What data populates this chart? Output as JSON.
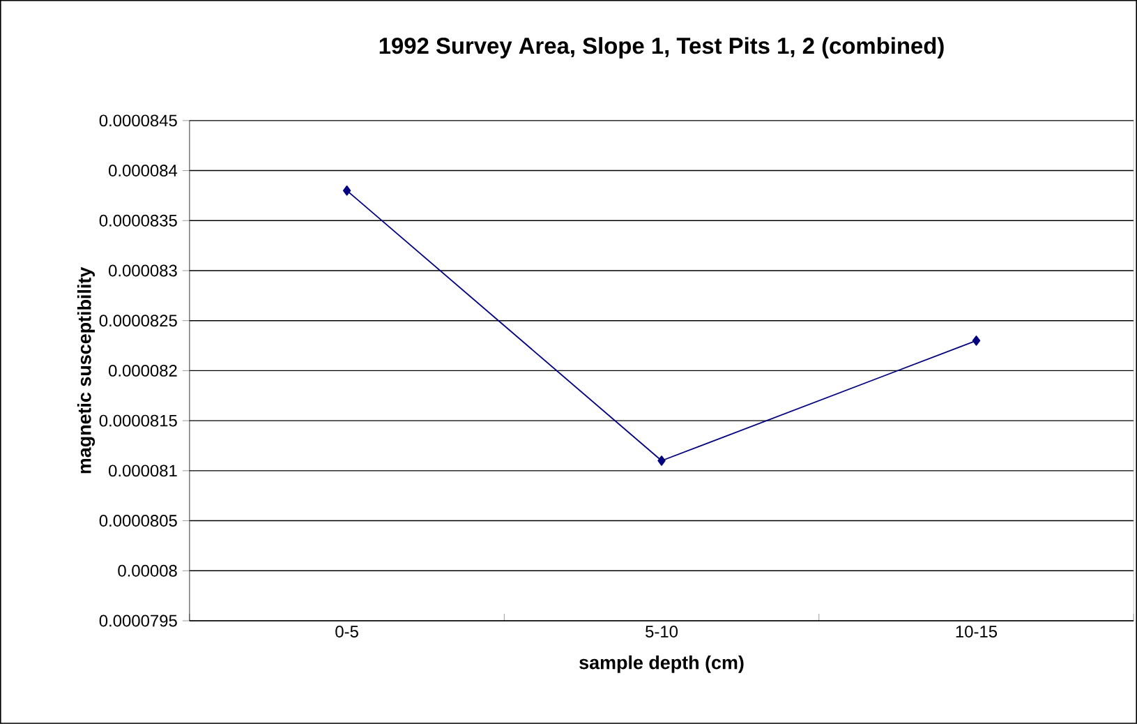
{
  "chart_data": {
    "type": "line",
    "title": "1992 Survey Area, Slope 1, Test Pits 1, 2 (combined)",
    "xlabel": "sample depth (cm)",
    "ylabel": "magnetic susceptibility",
    "categories": [
      "0-5",
      "5-10",
      "10-15"
    ],
    "series": [
      {
        "color": "#000080",
        "values": [
          8.38e-05,
          8.11e-05,
          8.23e-05
        ]
      }
    ],
    "ylim": [
      7.95e-05,
      8.45e-05
    ],
    "yticks": [
      {
        "value": 7.95e-05,
        "label": "0.0000795"
      },
      {
        "value": 8e-05,
        "label": "0.00008"
      },
      {
        "value": 8.05e-05,
        "label": "0.0000805"
      },
      {
        "value": 8.1e-05,
        "label": "0.000081"
      },
      {
        "value": 8.15e-05,
        "label": "0.0000815"
      },
      {
        "value": 8.2e-05,
        "label": "0.000082"
      },
      {
        "value": 8.25e-05,
        "label": "0.0000825"
      },
      {
        "value": 8.3e-05,
        "label": "0.000083"
      },
      {
        "value": 8.35e-05,
        "label": "0.0000835"
      },
      {
        "value": 8.4e-05,
        "label": "0.000084"
      },
      {
        "value": 8.45e-05,
        "label": "0.0000845"
      }
    ],
    "grid": "y",
    "marker": "diamond",
    "line_style": "solid"
  }
}
